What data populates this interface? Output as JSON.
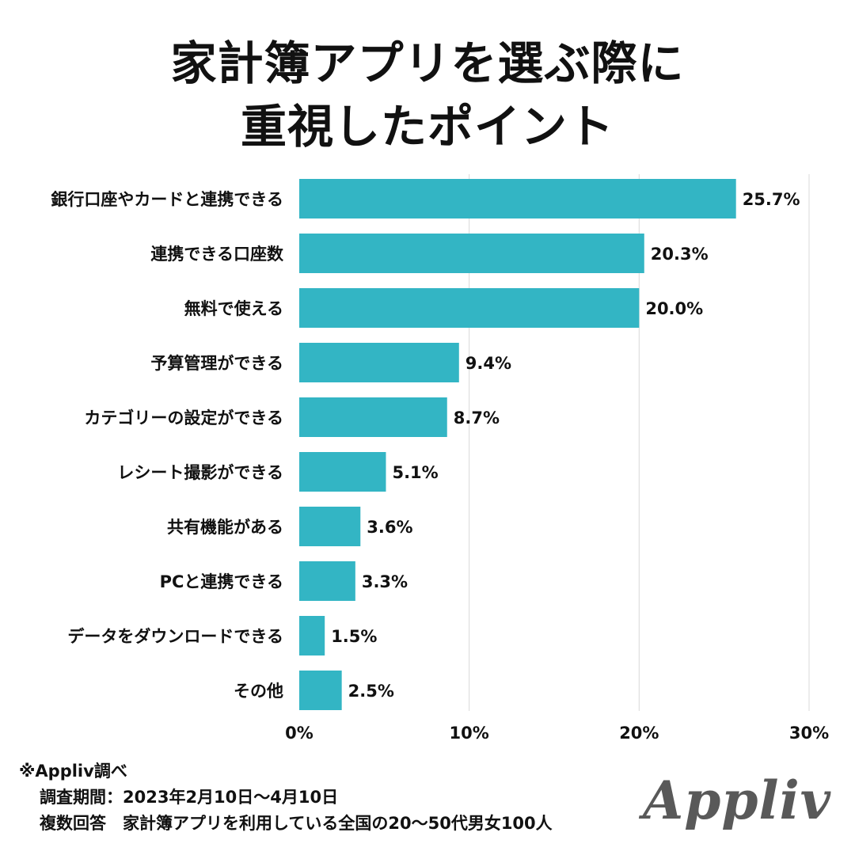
{
  "title": {
    "line1": "家計簿アプリを選ぶ際に",
    "line2": "重視したポイント"
  },
  "colors": {
    "bar": "#33b5c4",
    "grid": "#d9d9d9",
    "text": "#111111",
    "logo": "#595959"
  },
  "chart_data": {
    "type": "bar",
    "orientation": "horizontal",
    "categories": [
      "銀行口座やカードと連携できる",
      "連携できる口座数",
      "無料で使える",
      "予算管理ができる",
      "カテゴリーの設定ができる",
      "レシート撮影ができる",
      "共有機能がある",
      "PCと連携できる",
      "データをダウンロードできる",
      "その他"
    ],
    "values": [
      25.7,
      20.3,
      20.0,
      9.4,
      8.7,
      5.1,
      3.6,
      3.3,
      1.5,
      2.5
    ],
    "value_labels": [
      "25.7%",
      "20.3%",
      "20.0%",
      "9.4%",
      "8.7%",
      "5.1%",
      "3.6%",
      "3.3%",
      "1.5%",
      "2.5%"
    ],
    "xlim": [
      0,
      30
    ],
    "xticks": [
      0,
      10,
      20,
      30
    ],
    "xtick_labels": [
      "0%",
      "10%",
      "20%",
      "30%"
    ],
    "grid": true,
    "legend": "none"
  },
  "notes": {
    "source": "※Appliv調べ",
    "period": "調査期間：2023年2月10日～4月10日",
    "sample": "複数回答　家計簿アプリを利用している全国の20～50代男女100人"
  },
  "logo": {
    "text": "Appliv"
  }
}
